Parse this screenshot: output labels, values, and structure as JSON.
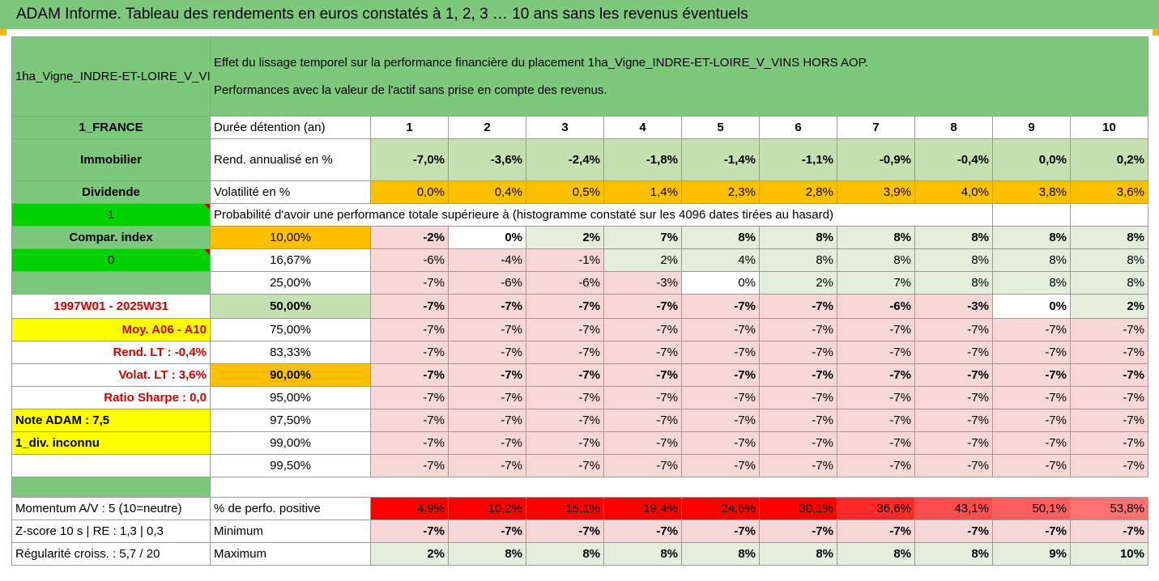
{
  "title": "ADAM Informe. Tableau des rendements en euros constatés à 1, 2, 3 … 10 ans sans les revenus éventuels",
  "asset_name": "1ha_Vigne_INDRE-ET-LOIRE_V_VINS HORS AOP",
  "description_line1": "Effet du lissage temporel sur la performance financière du placement 1ha_Vigne_INDRE-ET-LOIRE_V_VINS HORS AOP.",
  "description_line2": "Performances avec la valeur de l'actif sans prise en compte des revenus.",
  "left": {
    "country": "1_FRANCE",
    "category": "Immobilier",
    "dividend_label": "Dividende",
    "dividend_value": "1",
    "compar_label": "Compar. index",
    "compar_value": "0",
    "period": "1997W01 - 2025W31",
    "moy": "Moy. A06 - A10",
    "rend_lt": "Rend. LT :   -0,4%",
    "volat_lt": "Volat. LT :   3,6%",
    "sharpe": "Ratio Sharpe :   0,0",
    "note": "Note ADAM : 7,5",
    "div": "1_div. inconnu",
    "momentum": "Momentum A/V : 5 (10=neutre)",
    "zscore": "Z-score 10 s  |  RE : 1,3  |  0,3",
    "regularite": "Régularité croiss. : 5,7 / 20"
  },
  "labels": {
    "duree": "Durée détention (an)",
    "rend": "Rend. annualisé en %",
    "vol": "Volatilité en %",
    "proba": "Probabilité d'avoir une performance totale supérieure à (histogramme constaté sur les 4096 dates tirées au hasard)",
    "perf_pos": "% de perfo. positive",
    "minimum": "Minimum",
    "maximum": "Maximum"
  },
  "years": [
    "1",
    "2",
    "3",
    "4",
    "5",
    "6",
    "7",
    "8",
    "9",
    "10"
  ],
  "rend": [
    "-7,0%",
    "-3,6%",
    "-2,4%",
    "-1,8%",
    "-1,4%",
    "-1,1%",
    "-0,9%",
    "-0,4%",
    "0,0%",
    "0,2%"
  ],
  "vol": [
    "0,0%",
    "0,4%",
    "0,5%",
    "1,4%",
    "2,3%",
    "2,8%",
    "3,9%",
    "4,0%",
    "3,8%",
    "3,6%"
  ],
  "prob_rows": [
    {
      "pct": "10,00%",
      "vals": [
        "-2%",
        "0%",
        "2%",
        "7%",
        "8%",
        "8%",
        "8%",
        "8%",
        "8%",
        "8%"
      ]
    },
    {
      "pct": "16,67%",
      "vals": [
        "-6%",
        "-4%",
        "-1%",
        "2%",
        "4%",
        "8%",
        "8%",
        "8%",
        "8%",
        "8%"
      ]
    },
    {
      "pct": "25,00%",
      "vals": [
        "-7%",
        "-6%",
        "-6%",
        "-3%",
        "0%",
        "2%",
        "7%",
        "8%",
        "8%",
        "8%"
      ]
    },
    {
      "pct": "50,00%",
      "vals": [
        "-7%",
        "-7%",
        "-7%",
        "-7%",
        "-7%",
        "-7%",
        "-6%",
        "-3%",
        "0%",
        "2%"
      ]
    },
    {
      "pct": "75,00%",
      "vals": [
        "-7%",
        "-7%",
        "-7%",
        "-7%",
        "-7%",
        "-7%",
        "-7%",
        "-7%",
        "-7%",
        "-7%"
      ]
    },
    {
      "pct": "83,33%",
      "vals": [
        "-7%",
        "-7%",
        "-7%",
        "-7%",
        "-7%",
        "-7%",
        "-7%",
        "-7%",
        "-7%",
        "-7%"
      ]
    },
    {
      "pct": "90,00%",
      "vals": [
        "-7%",
        "-7%",
        "-7%",
        "-7%",
        "-7%",
        "-7%",
        "-7%",
        "-7%",
        "-7%",
        "-7%"
      ]
    },
    {
      "pct": "95,00%",
      "vals": [
        "-7%",
        "-7%",
        "-7%",
        "-7%",
        "-7%",
        "-7%",
        "-7%",
        "-7%",
        "-7%",
        "-7%"
      ]
    },
    {
      "pct": "97,50%",
      "vals": [
        "-7%",
        "-7%",
        "-7%",
        "-7%",
        "-7%",
        "-7%",
        "-7%",
        "-7%",
        "-7%",
        "-7%"
      ]
    },
    {
      "pct": "99,00%",
      "vals": [
        "-7%",
        "-7%",
        "-7%",
        "-7%",
        "-7%",
        "-7%",
        "-7%",
        "-7%",
        "-7%",
        "-7%"
      ]
    },
    {
      "pct": "99,50%",
      "vals": [
        "-7%",
        "-7%",
        "-7%",
        "-7%",
        "-7%",
        "-7%",
        "-7%",
        "-7%",
        "-7%",
        "-7%"
      ]
    }
  ],
  "perf_pos": [
    "4,9%",
    "10,2%",
    "15,1%",
    "19,4%",
    "24,5%",
    "30,1%",
    "36,6%",
    "43,1%",
    "50,1%",
    "53,8%"
  ],
  "minimum": [
    "-7%",
    "-7%",
    "-7%",
    "-7%",
    "-7%",
    "-7%",
    "-7%",
    "-7%",
    "-7%",
    "-7%"
  ],
  "maximum": [
    "2%",
    "8%",
    "8%",
    "8%",
    "8%",
    "8%",
    "8%",
    "8%",
    "9%",
    "10%"
  ]
}
